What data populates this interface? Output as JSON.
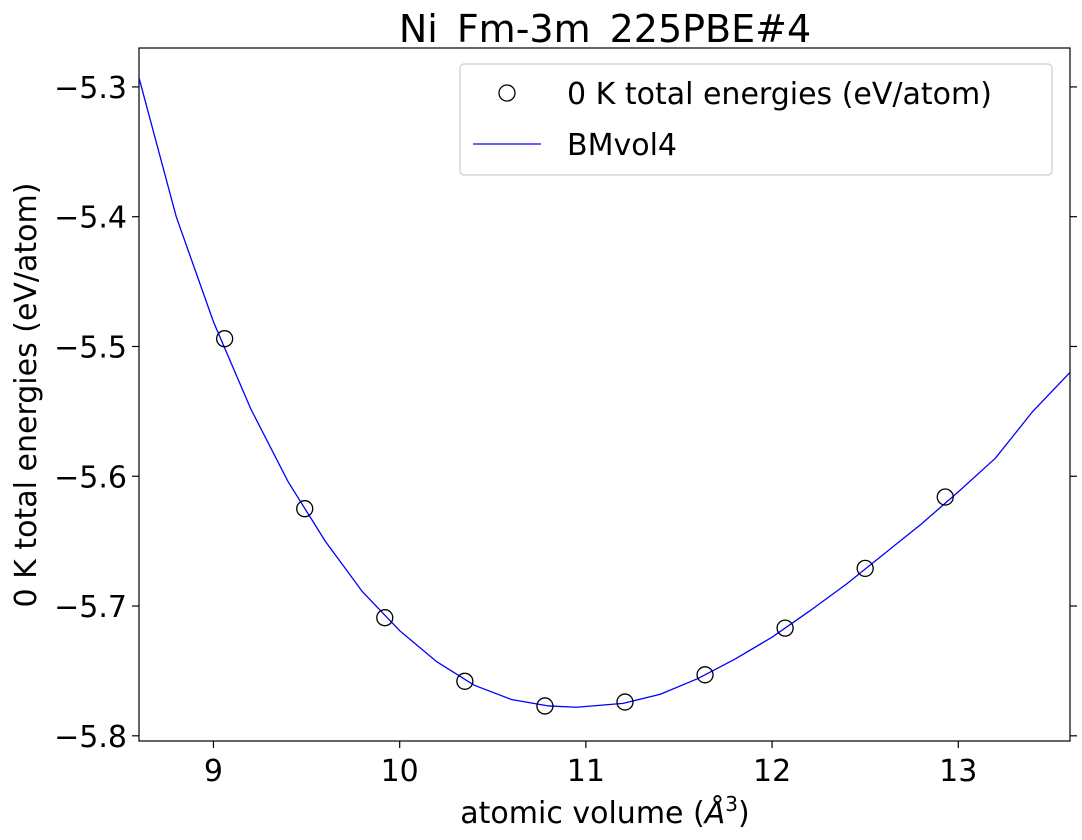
{
  "chart_data": {
    "type": "scatter",
    "title": "Ni_Fm-3m_225PBE#4",
    "xlabel": "atomic volume (",
    "xlabel_symbol": "Å",
    "xlabel_exponent": "3",
    "xlabel_close": ")",
    "ylabel": "0 K total energies (eV/atom)",
    "xlim": [
      8.6,
      13.6
    ],
    "ylim": [
      -5.804,
      -5.27
    ],
    "xticks": [
      9,
      10,
      11,
      12,
      13
    ],
    "xtick_labels": [
      "9",
      "10",
      "11",
      "12",
      "13"
    ],
    "yticks": [
      -5.8,
      -5.7,
      -5.6,
      -5.5,
      -5.4,
      -5.3
    ],
    "ytick_labels": [
      "−5.8",
      "−5.7",
      "−5.6",
      "−5.5",
      "−5.4",
      "−5.3"
    ],
    "grid": false,
    "legend": "top-right",
    "series": [
      {
        "name": "0 K total energies (eV/atom)",
        "kind": "scatter",
        "marker": "open-circle",
        "color": "#000000",
        "x": [
          9.06,
          9.49,
          9.92,
          10.35,
          10.78,
          11.21,
          11.64,
          12.07,
          12.5,
          12.93
        ],
        "y": [
          -5.494,
          -5.625,
          -5.709,
          -5.758,
          -5.777,
          -5.774,
          -5.753,
          -5.717,
          -5.671,
          -5.616
        ]
      },
      {
        "name": "BMvol4",
        "kind": "line",
        "color": "#0000ff",
        "x": [
          8.6,
          8.8,
          9.0,
          9.2,
          9.4,
          9.6,
          9.8,
          10.0,
          10.2,
          10.4,
          10.6,
          10.8,
          10.95,
          11.2,
          11.4,
          11.6,
          11.8,
          12.0,
          12.2,
          12.4,
          12.6,
          12.8,
          13.0,
          13.2,
          13.4,
          13.6
        ],
        "y": [
          -5.293,
          -5.4,
          -5.481,
          -5.548,
          -5.604,
          -5.65,
          -5.689,
          -5.719,
          -5.743,
          -5.761,
          -5.772,
          -5.777,
          -5.778,
          -5.775,
          -5.768,
          -5.756,
          -5.741,
          -5.724,
          -5.704,
          -5.683,
          -5.66,
          -5.637,
          -5.612,
          -5.586,
          -5.55,
          -5.52
        ]
      }
    ]
  }
}
